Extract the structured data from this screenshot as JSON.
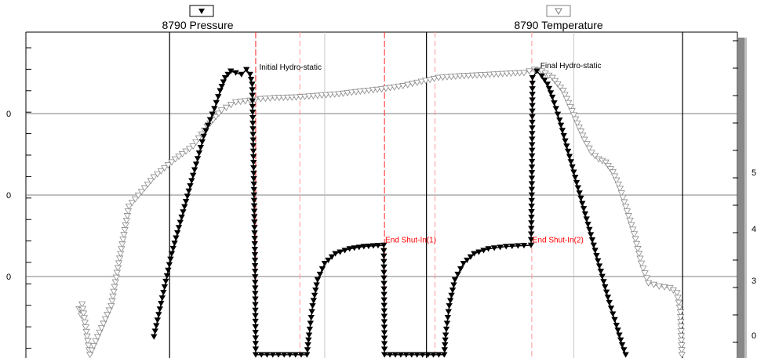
{
  "chart_data": {
    "type": "line",
    "legend_placement": "top",
    "grid": true,
    "x_range": [
      0,
      100
    ],
    "y_range": [
      0,
      100
    ],
    "series": [
      {
        "name": "8790 Pressure",
        "marker": "filled-down-triangle",
        "color": "#000000",
        "points": [
          [
            18.0,
            6.5
          ],
          [
            20.5,
            32.0
          ],
          [
            23.5,
            56.0
          ],
          [
            25.0,
            68.0
          ],
          [
            26.5,
            76.5
          ],
          [
            27.3,
            82.0
          ],
          [
            28.0,
            86.0
          ],
          [
            28.8,
            88.0
          ],
          [
            29.5,
            87.5
          ],
          [
            30.3,
            87.0
          ],
          [
            31.0,
            88.5
          ],
          [
            31.5,
            87.0
          ],
          [
            31.8,
            84.0
          ],
          [
            32.0,
            60.0
          ],
          [
            32.2,
            30.0
          ],
          [
            32.3,
            1.0
          ],
          [
            39.5,
            1.0
          ],
          [
            39.8,
            7.0
          ],
          [
            40.3,
            16.0
          ],
          [
            41.0,
            24.0
          ],
          [
            42.0,
            29.0
          ],
          [
            43.5,
            32.0
          ],
          [
            45.5,
            33.5
          ],
          [
            47.5,
            34.2
          ],
          [
            49.5,
            34.5
          ],
          [
            50.3,
            34.6
          ],
          [
            50.4,
            1.0
          ],
          [
            58.8,
            1.0
          ],
          [
            59.0,
            7.0
          ],
          [
            59.5,
            16.0
          ],
          [
            60.3,
            24.0
          ],
          [
            61.5,
            29.0
          ],
          [
            63.0,
            32.0
          ],
          [
            65.0,
            33.5
          ],
          [
            67.5,
            34.2
          ],
          [
            70.0,
            34.5
          ],
          [
            71.0,
            34.6
          ],
          [
            71.1,
            50.0
          ],
          [
            71.2,
            86.0
          ],
          [
            71.8,
            88.0
          ],
          [
            72.5,
            86.5
          ],
          [
            73.3,
            84.0
          ],
          [
            74.0,
            80.0
          ],
          [
            75.0,
            73.0
          ],
          [
            76.0,
            65.0
          ],
          [
            77.0,
            57.0
          ],
          [
            78.0,
            49.0
          ],
          [
            79.0,
            41.0
          ],
          [
            80.0,
            33.0
          ],
          [
            81.0,
            25.0
          ],
          [
            82.0,
            17.0
          ],
          [
            83.0,
            10.0
          ],
          [
            83.8,
            4.0
          ],
          [
            84.3,
            1.0
          ]
        ]
      },
      {
        "name": "8790 Temperature",
        "marker": "open-down-triangle",
        "color": "#808080",
        "points": [
          [
            7.5,
            15.0
          ],
          [
            7.8,
            13.0
          ],
          [
            7.9,
            16.5
          ],
          [
            9.0,
            1.0
          ],
          [
            12.0,
            16.0
          ],
          [
            14.5,
            46.5
          ],
          [
            18.0,
            55.5
          ],
          [
            21.0,
            61.0
          ],
          [
            23.5,
            65.0
          ],
          [
            25.5,
            71.0
          ],
          [
            27.5,
            76.0
          ],
          [
            29.5,
            78.5
          ],
          [
            31.5,
            79.0
          ],
          [
            33.0,
            79.5
          ],
          [
            35.0,
            79.8
          ],
          [
            38.0,
            80.0
          ],
          [
            41.0,
            80.5
          ],
          [
            44.0,
            81.0
          ],
          [
            47.0,
            81.8
          ],
          [
            50.0,
            82.5
          ],
          [
            53.0,
            83.5
          ],
          [
            55.0,
            84.5
          ],
          [
            58.0,
            86.0
          ],
          [
            61.0,
            86.5
          ],
          [
            64.0,
            86.8
          ],
          [
            67.0,
            87.2
          ],
          [
            70.0,
            87.5
          ],
          [
            71.5,
            88.5
          ],
          [
            72.5,
            88.0
          ],
          [
            74.0,
            86.0
          ],
          [
            75.5,
            82.0
          ],
          [
            76.5,
            77.0
          ],
          [
            77.5,
            72.0
          ],
          [
            78.5,
            67.0
          ],
          [
            79.5,
            63.0
          ],
          [
            80.5,
            61.0
          ],
          [
            81.5,
            60.0
          ],
          [
            82.5,
            57.0
          ],
          [
            83.5,
            52.0
          ],
          [
            84.5,
            45.0
          ],
          [
            85.5,
            38.0
          ],
          [
            86.5,
            29.0
          ],
          [
            87.5,
            23.0
          ],
          [
            89.0,
            22.0
          ],
          [
            90.5,
            21.5
          ],
          [
            91.5,
            20.0
          ],
          [
            92.0,
            14.0
          ],
          [
            92.2,
            1.0
          ]
        ]
      }
    ],
    "annotations": [
      {
        "text": "Initial Hydro-static",
        "x": 32.8,
        "y": 88.5,
        "color": "black"
      },
      {
        "text": "Final Hydro-static",
        "x": 72.3,
        "y": 89.0,
        "color": "black"
      },
      {
        "text": "End Shut-In(1)",
        "x": 50.5,
        "y": 35.5,
        "color": "red"
      },
      {
        "text": "End Shut-In(2)",
        "x": 71.2,
        "y": 35.5,
        "color": "red"
      }
    ],
    "event_lines": [
      {
        "x": 32.3,
        "style": "solid-red"
      },
      {
        "x": 50.4,
        "style": "solid-red"
      },
      {
        "x": 71.1,
        "style": "dashed-red"
      },
      {
        "x": 38.5,
        "style": "dashed-red"
      },
      {
        "x": 57.5,
        "style": "dashed-red"
      }
    ],
    "black_verticals": [
      20.2,
      56.3,
      92.3
    ],
    "gray_verticals": [
      42.0,
      77.0
    ],
    "horizontal_grid": [
      25,
      50,
      75
    ],
    "left_tick_labels": [
      "0",
      "0",
      "0"
    ],
    "right_tick_labels": [
      "5",
      "4",
      "3",
      "0"
    ]
  }
}
